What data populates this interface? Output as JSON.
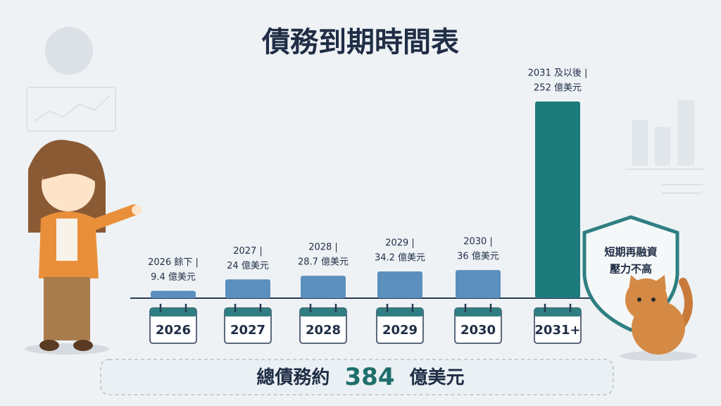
{
  "chart_data": {
    "type": "bar",
    "title": "債務到期時間表",
    "categories": [
      "2026",
      "2027",
      "2028",
      "2029",
      "2030",
      "2031+"
    ],
    "bar_titles": [
      "2026 餘下 |",
      "2027 |",
      "2028 |",
      "2029 |",
      "2030 |",
      "2031 及以後 |"
    ],
    "values": [
      9.4,
      24,
      28.7,
      34.2,
      36,
      252
    ],
    "value_labels": [
      "9.4 億美元",
      "24 億美元",
      "28.7 億美元",
      "34.2 億美元",
      "36 億美元",
      "252 億美元"
    ],
    "colors": [
      "#5b8fbd",
      "#5b8fbd",
      "#5b8fbd",
      "#5b8fbd",
      "#5b8fbd",
      "#1e7b7b"
    ]
  },
  "total": {
    "prefix": "總債務約",
    "value": 384,
    "suffix": "億美元"
  },
  "badge": {
    "lines": [
      "短期再融資",
      "壓力不高"
    ]
  }
}
